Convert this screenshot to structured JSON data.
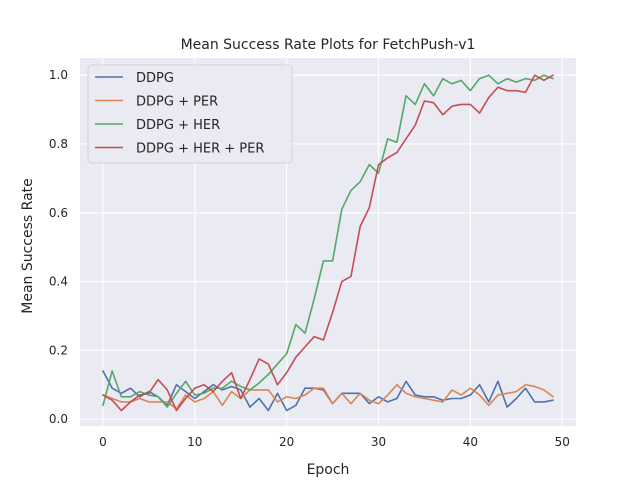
{
  "chart_data": {
    "type": "line",
    "title": "Mean Success Rate Plots for FetchPush-v1",
    "xlabel": "Epoch",
    "ylabel": "Mean Success Rate",
    "xlim": [
      -2.5,
      51.5
    ],
    "ylim": [
      -0.02,
      1.05
    ],
    "xticks": [
      0,
      10,
      20,
      30,
      40,
      50
    ],
    "xtick_labels": [
      "0",
      "10",
      "20",
      "30",
      "40",
      "50"
    ],
    "yticks": [
      0.0,
      0.2,
      0.4,
      0.6,
      0.8,
      1.0
    ],
    "ytick_labels": [
      "0.0",
      "0.2",
      "0.4",
      "0.6",
      "0.8",
      "1.0"
    ],
    "grid": true,
    "legend_position": "top-left",
    "background": "#eaeaf2",
    "x": [
      0,
      1,
      2,
      3,
      4,
      5,
      6,
      7,
      8,
      9,
      10,
      11,
      12,
      13,
      14,
      15,
      16,
      17,
      18,
      19,
      20,
      21,
      22,
      23,
      24,
      25,
      26,
      27,
      28,
      29,
      30,
      31,
      32,
      33,
      34,
      35,
      36,
      37,
      38,
      39,
      40,
      41,
      42,
      43,
      44,
      45,
      46,
      47,
      48,
      49
    ],
    "series": [
      {
        "name": "DDPG",
        "color": "#4c72b0",
        "values": [
          0.14,
          0.09,
          0.075,
          0.09,
          0.065,
          0.08,
          0.065,
          0.04,
          0.1,
          0.08,
          0.06,
          0.08,
          0.1,
          0.085,
          0.095,
          0.085,
          0.035,
          0.06,
          0.025,
          0.075,
          0.025,
          0.04,
          0.09,
          0.09,
          0.085,
          0.045,
          0.075,
          0.075,
          0.075,
          0.045,
          0.065,
          0.05,
          0.06,
          0.11,
          0.07,
          0.065,
          0.065,
          0.055,
          0.06,
          0.06,
          0.07,
          0.1,
          0.05,
          0.11,
          0.035,
          0.06,
          0.09,
          0.05,
          0.05,
          0.055
        ]
      },
      {
        "name": "DDPG + PER",
        "color": "#dd8452",
        "values": [
          0.07,
          0.06,
          0.05,
          0.05,
          0.06,
          0.05,
          0.05,
          0.05,
          0.03,
          0.07,
          0.05,
          0.06,
          0.08,
          0.04,
          0.08,
          0.06,
          0.085,
          0.085,
          0.085,
          0.05,
          0.065,
          0.06,
          0.07,
          0.09,
          0.09,
          0.045,
          0.075,
          0.045,
          0.075,
          0.055,
          0.045,
          0.07,
          0.1,
          0.075,
          0.065,
          0.06,
          0.055,
          0.05,
          0.085,
          0.07,
          0.09,
          0.07,
          0.04,
          0.07,
          0.075,
          0.08,
          0.1,
          0.095,
          0.085,
          0.065
        ]
      },
      {
        "name": "DDPG + HER",
        "color": "#55a868",
        "values": [
          0.04,
          0.14,
          0.065,
          0.065,
          0.08,
          0.07,
          0.065,
          0.035,
          0.075,
          0.11,
          0.07,
          0.075,
          0.09,
          0.09,
          0.11,
          0.095,
          0.085,
          0.105,
          0.13,
          0.16,
          0.19,
          0.275,
          0.25,
          0.35,
          0.46,
          0.46,
          0.61,
          0.665,
          0.69,
          0.74,
          0.715,
          0.815,
          0.805,
          0.94,
          0.915,
          0.975,
          0.94,
          0.99,
          0.975,
          0.985,
          0.955,
          0.99,
          1.0,
          0.975,
          0.99,
          0.98,
          0.99,
          0.985,
          1.0,
          0.99
        ]
      },
      {
        "name": "DDPG + HER + PER",
        "color": "#c44e52",
        "values": [
          0.07,
          0.055,
          0.025,
          0.05,
          0.07,
          0.075,
          0.115,
          0.085,
          0.025,
          0.06,
          0.09,
          0.1,
          0.08,
          0.11,
          0.135,
          0.06,
          0.115,
          0.175,
          0.16,
          0.1,
          0.135,
          0.18,
          0.21,
          0.24,
          0.23,
          0.31,
          0.4,
          0.415,
          0.56,
          0.615,
          0.74,
          0.76,
          0.775,
          0.815,
          0.855,
          0.925,
          0.92,
          0.885,
          0.91,
          0.915,
          0.915,
          0.89,
          0.935,
          0.965,
          0.955,
          0.955,
          0.95,
          1.0,
          0.985,
          1.0
        ]
      }
    ]
  }
}
